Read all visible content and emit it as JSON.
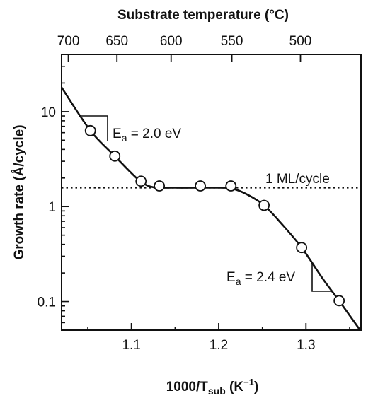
{
  "chart_data": {
    "type": "scatter",
    "xlabel": {
      "main": "1000/T",
      "sub": "sub",
      "unit_open": " (K",
      "unit_sup": "−1",
      "unit_close": ")"
    },
    "ylabel": "Growth rate (Å/cycle)",
    "top_xlabel": "Substrate temperature (°C)",
    "xlim": [
      1.02,
      1.363
    ],
    "ylim": [
      0.05,
      40
    ],
    "y_scale": "log",
    "x_ticks": [
      {
        "value": 1.1,
        "label": "1.1"
      },
      {
        "value": 1.2,
        "label": "1.2"
      },
      {
        "value": 1.3,
        "label": "1.3"
      }
    ],
    "y_ticks": [
      {
        "value": 0.1,
        "label": "0.1"
      },
      {
        "value": 1,
        "label": "1"
      },
      {
        "value": 10,
        "label": "10"
      }
    ],
    "top_ticks": [
      {
        "celsius": 700,
        "label": "700"
      },
      {
        "celsius": 650,
        "label": "650"
      },
      {
        "celsius": 600,
        "label": "600"
      },
      {
        "celsius": 550,
        "label": "550"
      },
      {
        "celsius": 500,
        "label": "500"
      }
    ],
    "top_axis_offset_K": 273,
    "grid": false,
    "series": [
      {
        "style": "markers",
        "x": [
          1.053,
          1.081,
          1.111,
          1.132,
          1.179,
          1.214,
          1.252,
          1.295,
          1.338
        ],
        "y": [
          6.3,
          3.4,
          1.85,
          1.65,
          1.65,
          1.65,
          1.03,
          0.37,
          0.102
        ]
      },
      {
        "style": "fit-curve",
        "x": [
          1.02,
          1.053,
          1.081,
          1.1,
          1.112,
          1.125,
          1.15,
          1.2,
          1.215,
          1.232,
          1.252,
          1.272,
          1.295,
          1.32,
          1.338,
          1.362
        ],
        "y": [
          18,
          6.3,
          3.4,
          2.25,
          1.8,
          1.6,
          1.58,
          1.58,
          1.55,
          1.35,
          1.03,
          0.66,
          0.37,
          0.17,
          0.102,
          0.05
        ]
      }
    ],
    "reference_line": {
      "y": 1.58,
      "style": "dotted",
      "label": "1 ML/cycle"
    },
    "annotations": [
      {
        "E": "E",
        "sub": "a",
        "value": " = 2.0 eV"
      },
      {
        "E": "E",
        "sub": "a",
        "value": " = 2.4 eV"
      }
    ]
  }
}
